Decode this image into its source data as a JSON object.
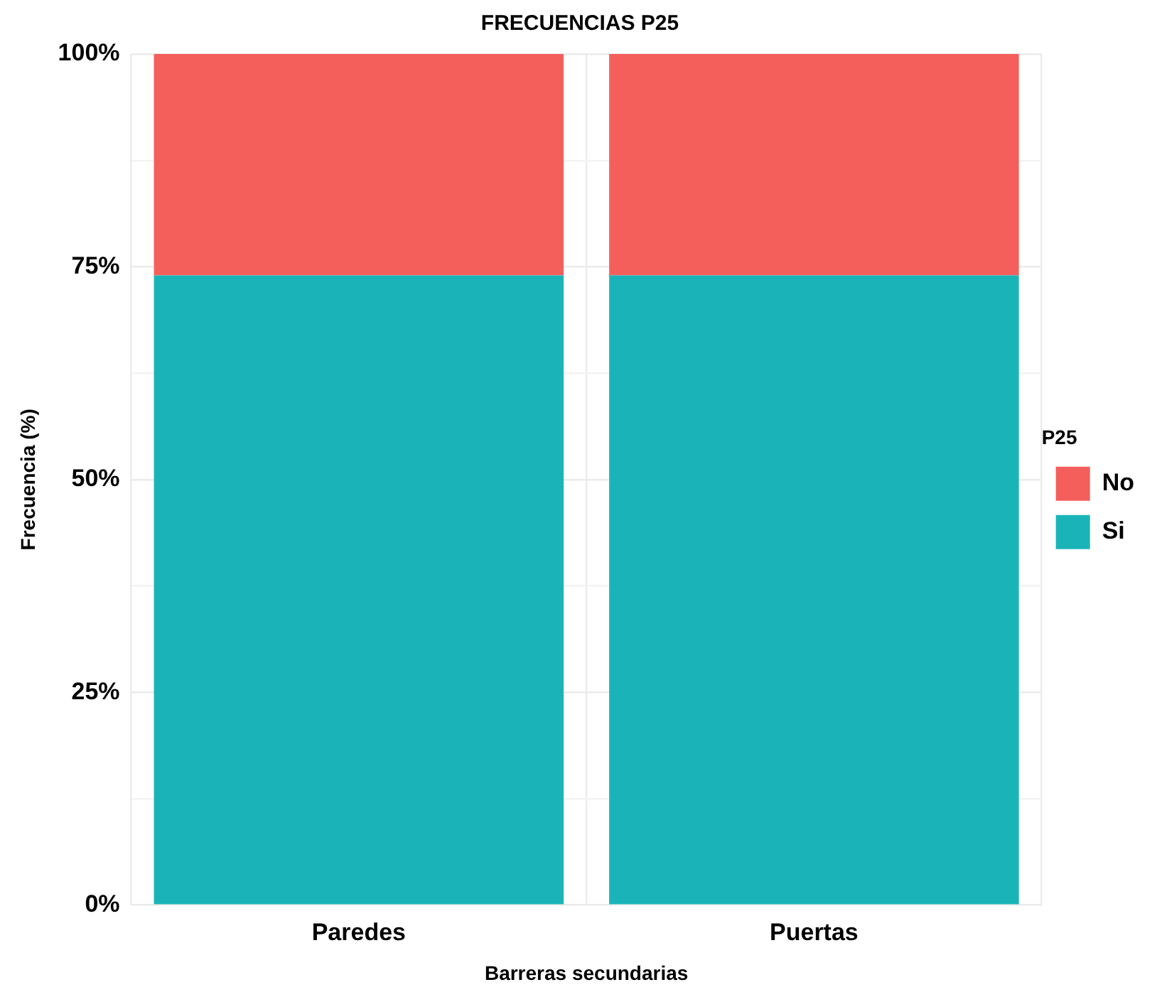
{
  "chart_data": {
    "type": "bar",
    "title": "FRECUENCIAS P25",
    "xlabel": "Barreras secundarias",
    "ylabel": "Frecuencia (%)",
    "legend_title": "P25",
    "categories": [
      "Paredes",
      "Puertas"
    ],
    "stacked": true,
    "series": [
      {
        "name": "Si",
        "color": "#1ab4b8",
        "values": [
          74,
          74
        ]
      },
      {
        "name": "No",
        "color": "#f45f5c",
        "values": [
          26,
          26
        ]
      }
    ],
    "ylim": [
      0,
      100
    ],
    "yticks": [
      {
        "value": 0,
        "label": "0%"
      },
      {
        "value": 12.5,
        "label": null
      },
      {
        "value": 25,
        "label": "25%"
      },
      {
        "value": 37.5,
        "label": null
      },
      {
        "value": 50,
        "label": "50%"
      },
      {
        "value": 62.5,
        "label": null
      },
      {
        "value": 75,
        "label": "75%"
      },
      {
        "value": 87.5,
        "label": null
      },
      {
        "value": 100,
        "label": "100%"
      }
    ],
    "grid": true,
    "legend": "right"
  }
}
